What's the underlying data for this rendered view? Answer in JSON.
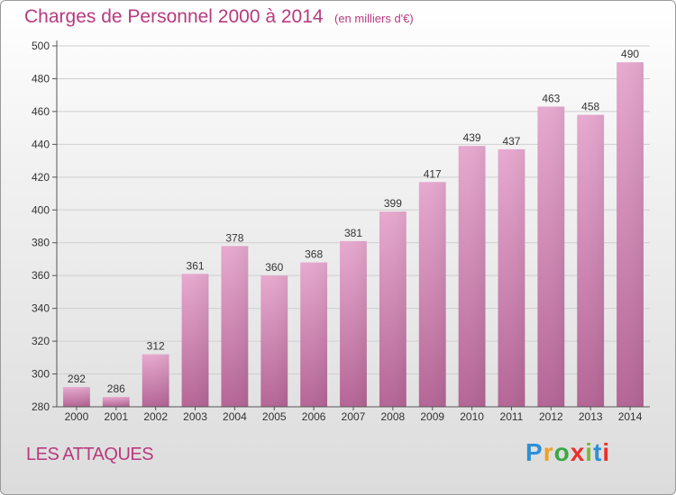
{
  "chart_data": {
    "type": "bar",
    "title": "Charges de Personnel 2000 à 2014",
    "subtitle": "(en milliers d'€)",
    "categories": [
      "2000",
      "2001",
      "2002",
      "2003",
      "2004",
      "2005",
      "2006",
      "2007",
      "2008",
      "2009",
      "2010",
      "2011",
      "2012",
      "2013",
      "2014"
    ],
    "values": [
      292,
      286,
      312,
      361,
      378,
      360,
      368,
      381,
      399,
      417,
      439,
      437,
      463,
      458,
      490
    ],
    "ylim": [
      280,
      500
    ],
    "yticks": [
      280,
      300,
      320,
      340,
      360,
      380,
      400,
      420,
      440,
      460,
      480,
      500
    ],
    "xlabel": "",
    "ylabel": "",
    "grid": true
  },
  "footer": {
    "commune": "LES ATTAQUES",
    "logo_text": "Proxiti"
  },
  "colors": {
    "title": "#b83a7e",
    "bar_top": "#e7a9cf",
    "bar_bottom": "#b96a98",
    "grid": "#cccccc"
  }
}
